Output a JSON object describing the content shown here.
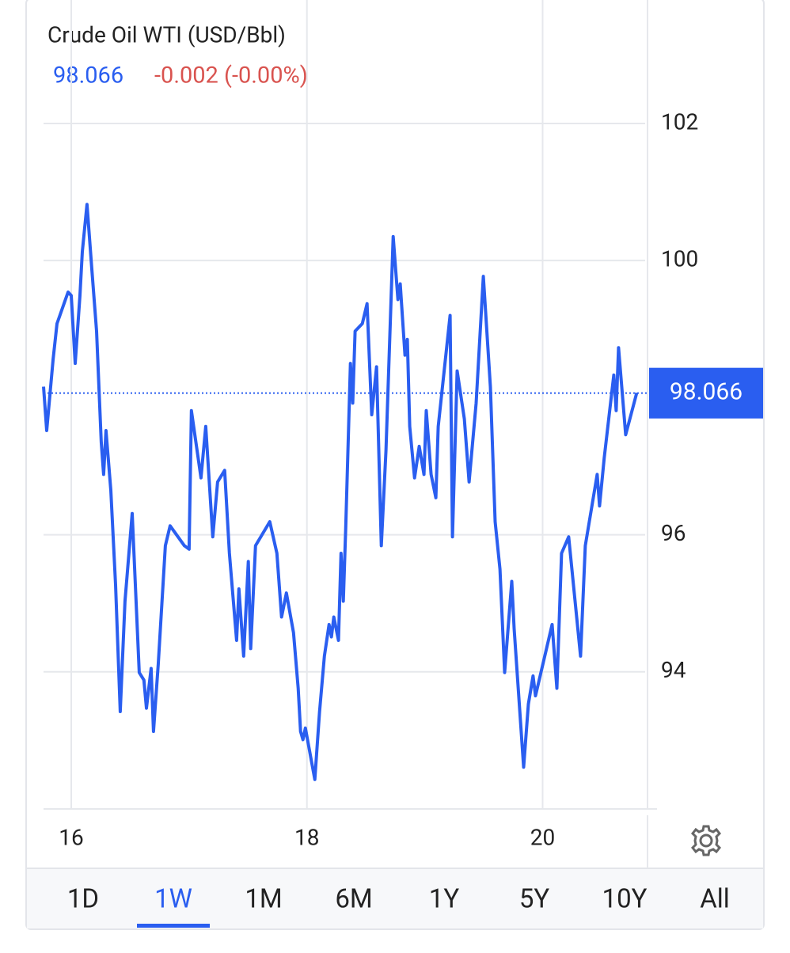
{
  "chart_data": {
    "type": "line",
    "title": "Crude Oil WTI (USD/Bbl)",
    "last_price": 98.066,
    "change": "-0.002 (-0.00%)",
    "color": "#2a5ef0",
    "grid": true,
    "xlim": [
      15.765,
      20.87
    ],
    "xticks": [
      16,
      18,
      20
    ],
    "ylim": [
      92,
      102.3
    ],
    "yticks": [
      94,
      96,
      100,
      102
    ],
    "x": [
      15.765,
      15.792,
      15.846,
      15.879,
      15.973,
      16.0,
      16.034,
      16.074,
      16.094,
      16.134,
      16.174,
      16.215,
      16.255,
      16.275,
      16.295,
      16.336,
      16.376,
      16.416,
      16.456,
      16.517,
      16.577,
      16.617,
      16.638,
      16.678,
      16.698,
      16.738,
      16.799,
      16.839,
      16.96,
      17.0,
      17.02,
      17.101,
      17.141,
      17.201,
      17.242,
      17.302,
      17.342,
      17.403,
      17.423,
      17.463,
      17.503,
      17.523,
      17.564,
      17.685,
      17.745,
      17.785,
      17.826,
      17.886,
      17.926,
      17.946,
      17.966,
      17.987,
      18.067,
      18.107,
      18.148,
      18.188,
      18.208,
      18.228,
      18.268,
      18.289,
      18.309,
      18.329,
      18.369,
      18.389,
      18.409,
      18.47,
      18.51,
      18.55,
      18.591,
      18.631,
      18.671,
      18.732,
      18.772,
      18.792,
      18.832,
      18.852,
      18.872,
      18.913,
      18.953,
      18.993,
      19.013,
      19.054,
      19.094,
      19.114,
      19.215,
      19.235,
      19.275,
      19.336,
      19.376,
      19.436,
      19.497,
      19.557,
      19.597,
      19.638,
      19.678,
      19.738,
      19.758,
      19.839,
      19.879,
      19.919,
      19.94,
      20.081,
      20.121,
      20.161,
      20.221,
      20.322,
      20.362,
      20.463,
      20.483,
      20.523,
      20.604,
      20.624,
      20.644,
      20.705,
      20.799
    ],
    "values": [
      98.16,
      97.52,
      98.56,
      99.08,
      99.54,
      99.49,
      98.5,
      99.49,
      100.13,
      100.82,
      99.89,
      98.97,
      97.35,
      96.88,
      97.52,
      96.65,
      95.27,
      93.42,
      95.03,
      96.31,
      93.99,
      93.88,
      93.47,
      94.05,
      93.13,
      94.11,
      95.84,
      96.13,
      95.84,
      95.79,
      97.81,
      96.83,
      97.58,
      95.97,
      96.77,
      96.94,
      95.73,
      94.46,
      95.21,
      94.23,
      95.61,
      94.34,
      95.84,
      96.19,
      95.73,
      94.8,
      95.15,
      94.57,
      93.76,
      93.13,
      93.01,
      93.18,
      92.43,
      93.42,
      94.23,
      94.69,
      94.51,
      94.8,
      94.46,
      95.73,
      95.03,
      96.08,
      98.5,
      97.92,
      98.97,
      99.08,
      99.37,
      97.75,
      98.45,
      95.84,
      97.23,
      100.35,
      99.43,
      99.66,
      98.62,
      98.85,
      97.58,
      96.83,
      97.29,
      96.88,
      97.81,
      96.88,
      96.54,
      97.58,
      99.2,
      95.97,
      98.39,
      97.69,
      96.77,
      97.92,
      99.77,
      98.16,
      96.19,
      95.5,
      93.99,
      95.32,
      94.63,
      92.61,
      93.53,
      93.94,
      93.65,
      94.69,
      93.76,
      95.73,
      95.97,
      94.23,
      95.84,
      96.88,
      96.42,
      97.12,
      98.33,
      97.81,
      98.73,
      97.46,
      98.07
    ]
  },
  "ranges": [
    "1D",
    "1W",
    "1M",
    "6M",
    "1Y",
    "5Y",
    "10Y",
    "All"
  ],
  "selected_range": "1W"
}
